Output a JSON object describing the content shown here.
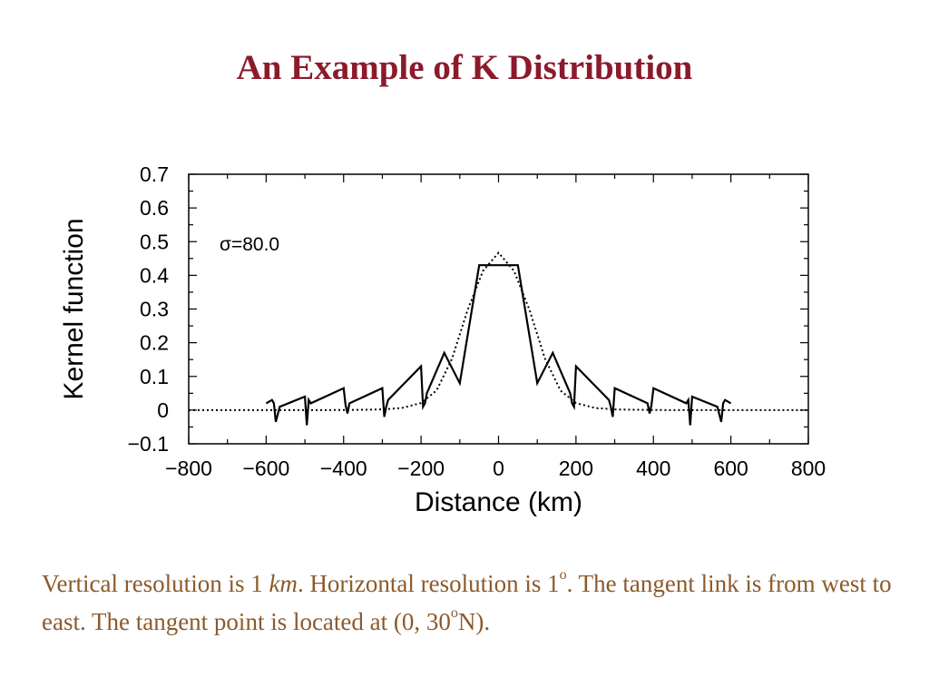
{
  "slide": {
    "title": "An Example of K Distribution"
  },
  "caption": {
    "part1": "Vertical resolution is 1 ",
    "km": "km",
    "part2": ". Horizontal resolution is 1",
    "degree_mark": "o",
    "part3": ". The tangent link is from west to east. The tangent point is located at (0, 30",
    "degree_mark2": "o",
    "part4": "N)."
  },
  "colors": {
    "title": "#8b1a2b",
    "caption": "#8b5a2b",
    "plot_ink": "#000000"
  },
  "chart_data": {
    "type": "line",
    "title": "",
    "xlabel": "Distance (km)",
    "ylabel": "Kernel function",
    "xlim": [
      -800,
      800
    ],
    "ylim": [
      -0.1,
      0.7
    ],
    "xticks": [
      -800,
      -600,
      -400,
      -200,
      0,
      200,
      400,
      600,
      800
    ],
    "xtick_labels": [
      "−800",
      "−600",
      "−400",
      "−200",
      "0",
      "200",
      "400",
      "600",
      "800"
    ],
    "yticks": [
      -0.1,
      0,
      0.1,
      0.2,
      0.3,
      0.4,
      0.5,
      0.6,
      0.7
    ],
    "ytick_labels": [
      "−0.1",
      "0",
      "0.1",
      "0.2",
      "0.3",
      "0.4",
      "0.5",
      "0.6",
      "0.7"
    ],
    "grid": false,
    "annotation": "σ=80.0",
    "series": [
      {
        "style": "solid",
        "x": [
          -600,
          -585,
          -580,
          -575,
          -565,
          -500,
          -495,
          -490,
          -485,
          -400,
          -395,
          -390,
          -385,
          -300,
          -295,
          -290,
          -285,
          -200,
          -195,
          -190,
          -185,
          -140,
          -100,
          -50,
          50,
          100,
          140,
          185,
          190,
          195,
          200,
          285,
          290,
          295,
          300,
          385,
          390,
          395,
          400,
          485,
          490,
          495,
          500,
          565,
          575,
          580,
          585,
          600
        ],
        "y": [
          0.02,
          0.03,
          0.02,
          -0.035,
          0.01,
          0.04,
          -0.045,
          0.03,
          0.02,
          0.065,
          0.015,
          -0.01,
          0.02,
          0.065,
          -0.02,
          0.01,
          0.03,
          0.13,
          0.01,
          0.02,
          0.05,
          0.17,
          0.08,
          0.43,
          0.43,
          0.08,
          0.17,
          0.05,
          0.02,
          0.01,
          0.13,
          0.03,
          0.01,
          -0.02,
          0.065,
          0.02,
          -0.01,
          0.015,
          0.065,
          0.02,
          0.03,
          -0.045,
          0.04,
          0.01,
          -0.035,
          0.02,
          0.03,
          0.02
        ]
      },
      {
        "style": "dotted",
        "x": [
          -800,
          -600,
          -450,
          -350,
          -300,
          -250,
          -200,
          -160,
          -120,
          -80,
          -40,
          0,
          40,
          80,
          120,
          160,
          200,
          250,
          300,
          350,
          450,
          600,
          800
        ],
        "y": [
          0,
          0,
          0,
          0.001,
          0.002,
          0.006,
          0.021,
          0.058,
          0.153,
          0.297,
          0.413,
          0.467,
          0.413,
          0.297,
          0.153,
          0.058,
          0.021,
          0.006,
          0.002,
          0.001,
          0,
          0,
          0
        ]
      }
    ]
  }
}
